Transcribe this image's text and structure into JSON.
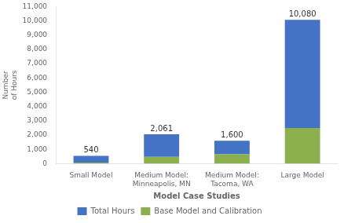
{
  "chart_data": {
    "type": "bar",
    "stacked": true,
    "xlabel": "Model Case Studies",
    "ylabel": "Number\nof Hours",
    "categories": [
      "Small Model",
      "Medium Model:\nMinneapolis, MN",
      "Medium Model:\nTacoma, WA",
      "Large Model"
    ],
    "series": [
      {
        "name": "Base Model and Calibration",
        "color": "#8DB04E",
        "values": [
          80,
          480,
          650,
          2500
        ]
      },
      {
        "name": "Total Hours",
        "color": "#4472C4",
        "values": [
          460,
          1581,
          950,
          7580
        ]
      }
    ],
    "totals": [
      540,
      2061,
      1600,
      10080
    ],
    "total_labels": [
      "540",
      "2,061",
      "1,600",
      "10,080"
    ],
    "ylim": [
      0,
      11000
    ],
    "yticks": [
      0,
      {
        "value": 1000,
        "label": "1,000"
      },
      {
        "value": 2000,
        "label": "2,000"
      },
      {
        "value": 3000,
        "label": "3,000"
      },
      {
        "value": 4000,
        "label": "4,000"
      },
      {
        "value": 5000,
        "label": "5,000"
      },
      {
        "value": 6000,
        "label": "6,000"
      },
      {
        "value": 7000,
        "label": "7,000"
      },
      {
        "value": 8000,
        "label": "8,000"
      },
      {
        "value": 9000,
        "label": "9,000"
      },
      {
        "value": 10000,
        "label": "10,000"
      },
      {
        "value": 11000,
        "label": "11,000"
      }
    ],
    "grid": false,
    "legend": "bottom"
  }
}
